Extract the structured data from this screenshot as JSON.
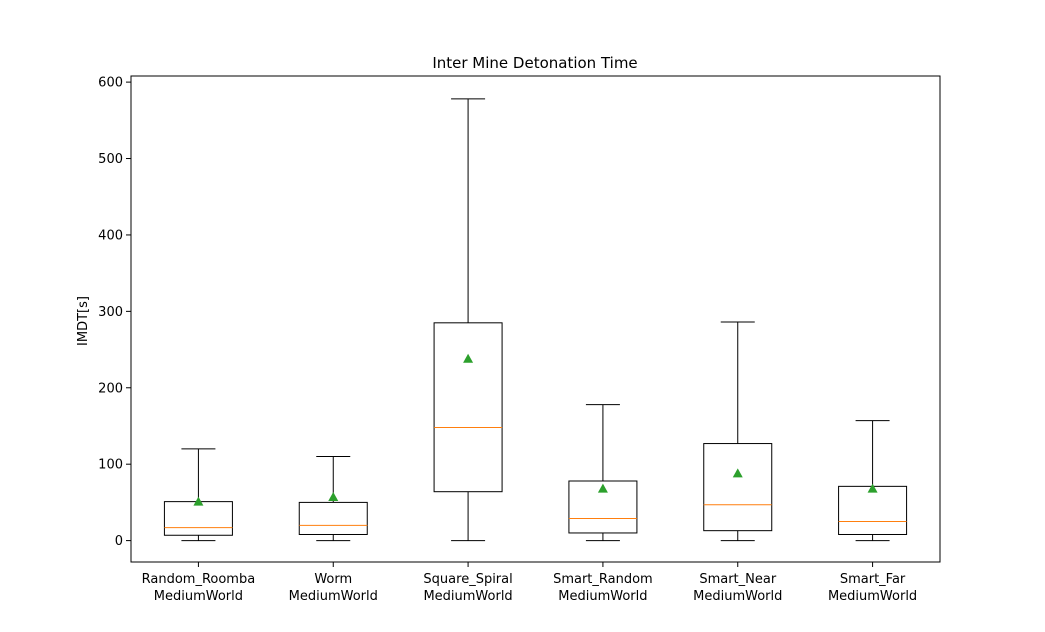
{
  "chart_data": {
    "type": "box",
    "title": "Inter Mine Detonation Time",
    "xlabel": "",
    "ylabel": "IMDT[s]",
    "ylim": [
      -28,
      608
    ],
    "yticks": [
      0,
      100,
      200,
      300,
      400,
      500,
      600
    ],
    "grid": false,
    "legend": "none",
    "categories": [
      [
        "Random_Roomba",
        "MediumWorld"
      ],
      [
        "Worm",
        "MediumWorld"
      ],
      [
        "Square_Spiral",
        "MediumWorld"
      ],
      [
        "Smart_Random",
        "MediumWorld"
      ],
      [
        "Smart_Near",
        "MediumWorld"
      ],
      [
        "Smart_Far",
        "MediumWorld"
      ]
    ],
    "boxes": [
      {
        "whisker_low": 0,
        "q1": 7,
        "median": 17,
        "q3": 51,
        "whisker_high": 120,
        "mean": 51
      },
      {
        "whisker_low": 0,
        "q1": 8,
        "median": 20,
        "q3": 50,
        "whisker_high": 110,
        "mean": 57
      },
      {
        "whisker_low": 0,
        "q1": 64,
        "median": 148,
        "q3": 285,
        "whisker_high": 578,
        "mean": 238
      },
      {
        "whisker_low": 0,
        "q1": 10,
        "median": 29,
        "q3": 78,
        "whisker_high": 178,
        "mean": 68
      },
      {
        "whisker_low": 0,
        "q1": 13,
        "median": 47,
        "q3": 127,
        "whisker_high": 286,
        "mean": 88
      },
      {
        "whisker_low": 0,
        "q1": 8,
        "median": 25,
        "q3": 71,
        "whisker_high": 157,
        "mean": 68
      }
    ],
    "colors": {
      "box": "#000000",
      "median": "#ff7f0e",
      "mean": "#2ca02c"
    }
  }
}
